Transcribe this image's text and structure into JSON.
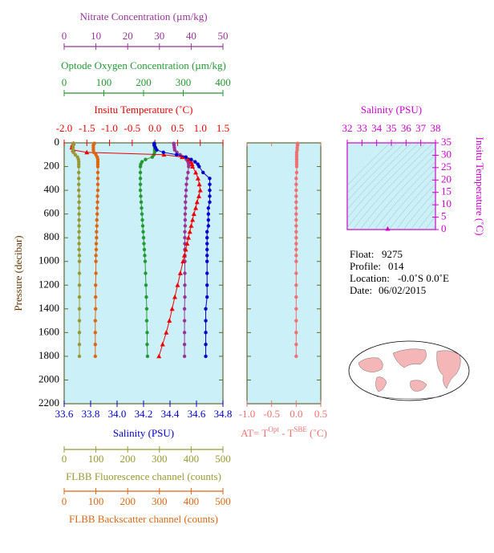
{
  "chart_data": [
    {
      "type": "profile",
      "ylabel": "Pressure (decibar)",
      "ylim": [
        0,
        2200
      ],
      "yticks": [
        0,
        200,
        400,
        600,
        800,
        1000,
        1200,
        1400,
        1600,
        1800,
        2000,
        2200
      ],
      "pressure": [
        5,
        20,
        40,
        60,
        80,
        100,
        120,
        140,
        160,
        180,
        200,
        250,
        300,
        350,
        400,
        450,
        500,
        550,
        600,
        650,
        700,
        750,
        800,
        850,
        900,
        950,
        1000,
        1100,
        1200,
        1300,
        1400,
        1500,
        1600,
        1700,
        1800
      ],
      "axes": [
        {
          "title": "Nitrate Concentration (µm/kg)",
          "color": "#993399",
          "marker": "circle",
          "xlim": [
            0,
            50
          ],
          "xticks": [
            0,
            10,
            20,
            30,
            40,
            50
          ],
          "values": [
            34.5,
            34.6,
            34.7,
            34.8,
            35.5,
            36.5,
            37.5,
            38.5,
            39,
            39.2,
            39.2,
            39,
            38.7,
            38.5,
            38.4,
            38.3,
            38.2,
            38.2,
            38.1,
            38.1,
            38.1,
            38,
            38,
            38,
            38,
            38,
            38,
            38,
            38,
            38,
            37.9,
            37.9,
            37.9,
            37.9,
            37.9
          ]
        },
        {
          "title": "Optode Oxygen Concentration (µm/kg)",
          "color": "#229933",
          "marker": "circle",
          "xlim": [
            0,
            400
          ],
          "xticks": [
            0,
            100,
            200,
            300,
            400
          ],
          "values": [
            228,
            228,
            228,
            228,
            228,
            226,
            222,
            205,
            196,
            193,
            192,
            192,
            192,
            192,
            192,
            193,
            194,
            195,
            196,
            197,
            198,
            199,
            200,
            201,
            202,
            203,
            204,
            205,
            206,
            207,
            208,
            208,
            209,
            209,
            210
          ]
        },
        {
          "title": "Insitu Temperature (˚C)",
          "color": "#ee0000",
          "marker": "triangle",
          "xlim": [
            -2.0,
            1.5
          ],
          "xticks": [
            {
              "value": -2.0,
              "label": "-2.0"
            },
            -1.5,
            {
              "value": -1.0,
              "label": "-1.0"
            },
            -0.5,
            {
              "value": 0.0,
              "label": "0.0"
            },
            0.5,
            {
              "value": 1.0,
              "label": "1.0"
            },
            1.5
          ],
          "values": [
            -1.8,
            -1.82,
            -1.83,
            -1.8,
            -1.5,
            0.2,
            0.6,
            0.75,
            0.8,
            0.82,
            0.83,
            0.9,
            0.95,
            0.98,
            1.0,
            0.97,
            0.93,
            0.9,
            0.86,
            0.83,
            0.8,
            0.77,
            0.74,
            0.71,
            0.68,
            0.65,
            0.62,
            0.56,
            0.5,
            0.44,
            0.38,
            0.32,
            0.25,
            0.17,
            0.09
          ]
        },
        {
          "title": "Salinity (PSU)",
          "color": "#0000cc",
          "marker": "circle",
          "xlim": [
            33.6,
            34.8
          ],
          "xticks": [
            33.6,
            33.8,
            {
              "value": 34.0,
              "label": "34.0"
            },
            34.2,
            34.4,
            34.6,
            34.8
          ],
          "values": [
            34.28,
            34.28,
            34.29,
            34.3,
            34.35,
            34.45,
            34.52,
            34.56,
            34.59,
            34.61,
            34.62,
            34.65,
            34.7,
            34.7,
            34.7,
            34.7,
            34.7,
            34.69,
            34.69,
            34.69,
            34.69,
            34.68,
            34.68,
            34.68,
            34.68,
            34.68,
            34.68,
            34.68,
            34.68,
            34.68,
            34.67,
            34.67,
            34.67,
            34.67,
            34.67
          ]
        },
        {
          "title": "FLBB Fluorescence channel (counts)",
          "color": "#999933",
          "marker": "circle",
          "xlim": [
            0,
            500
          ],
          "xticks": [
            0,
            100,
            200,
            300,
            400,
            500
          ],
          "values": [
            30,
            28,
            28,
            28,
            29,
            35,
            42,
            45,
            46,
            46,
            46,
            46,
            46,
            46,
            46,
            47,
            47,
            47,
            47,
            47,
            47,
            47,
            47,
            47,
            47,
            48,
            48,
            48,
            48,
            48,
            48,
            48,
            48,
            48,
            48
          ]
        },
        {
          "title": "FLBB Backscatter channel (counts)",
          "color": "#dd6611",
          "marker": "circle",
          "xlim": [
            0,
            500
          ],
          "xticks": [
            0,
            100,
            200,
            300,
            400,
            500
          ],
          "values": [
            95,
            92,
            92,
            92,
            93,
            100,
            104,
            106,
            106,
            106,
            106,
            106,
            106,
            106,
            106,
            105,
            105,
            104,
            104,
            103,
            103,
            102,
            102,
            101,
            101,
            100,
            100,
            100,
            99,
            99,
            99,
            98,
            98,
            98,
            98
          ]
        }
      ]
    },
    {
      "type": "difference",
      "xlabel": [
        "AT= T",
        "Opt",
        " - T",
        "SBE",
        " (˚C)"
      ],
      "color": "#f07070",
      "xlim": [
        -1.0,
        0.5
      ],
      "xticks": [
        {
          "value": -1.0,
          "label": "-1.0"
        },
        -0.5,
        {
          "value": 0.0,
          "label": "0.0"
        },
        0.5
      ],
      "ylim": [
        0,
        2200
      ],
      "yticks": [
        0,
        200,
        400,
        600,
        800,
        1000,
        1200,
        1400,
        1600,
        1800,
        2000,
        2200
      ],
      "pressure": [
        5,
        20,
        40,
        60,
        80,
        100,
        120,
        140,
        160,
        180,
        200,
        250,
        300,
        350,
        400,
        450,
        500,
        550,
        600,
        650,
        700,
        750,
        800,
        850,
        900,
        950,
        1000,
        1100,
        1200,
        1300,
        1400,
        1500,
        1600,
        1700,
        1800
      ],
      "values": [
        0.03,
        0.03,
        0.02,
        0.02,
        0.01,
        0.01,
        0.01,
        0.01,
        0.01,
        0.01,
        0.01,
        0.01,
        0.0,
        0.0,
        0.0,
        0.0,
        0.0,
        0.0,
        0.0,
        0.0,
        0.0,
        0.0,
        0.0,
        0.0,
        0.0,
        0.0,
        0.0,
        0.0,
        0.0,
        0.0,
        0.0,
        0.0,
        0.0,
        0.0,
        0.0
      ]
    },
    {
      "type": "scatter",
      "title": "Salinity (PSU)",
      "ylabel": "Insitu Temperature (˚C)",
      "color": "#cc00cc",
      "xlim": [
        32,
        38
      ],
      "xticks": [
        32,
        33,
        34,
        35,
        36,
        37,
        38
      ],
      "ylim": [
        0,
        35
      ],
      "yticks": [
        0,
        5,
        10,
        15,
        20,
        25,
        30,
        35
      ],
      "x": [
        34.75
      ],
      "values": [
        0.3
      ]
    }
  ],
  "info": [
    {
      "label": "Float:",
      "value": "9275"
    },
    {
      "label": "Profile:",
      "value": "014"
    },
    {
      "label": "Location:",
      "value": "-0.0˚S   0.0˚E"
    },
    {
      "label": "Date:",
      "value": "06/02/2015"
    }
  ]
}
